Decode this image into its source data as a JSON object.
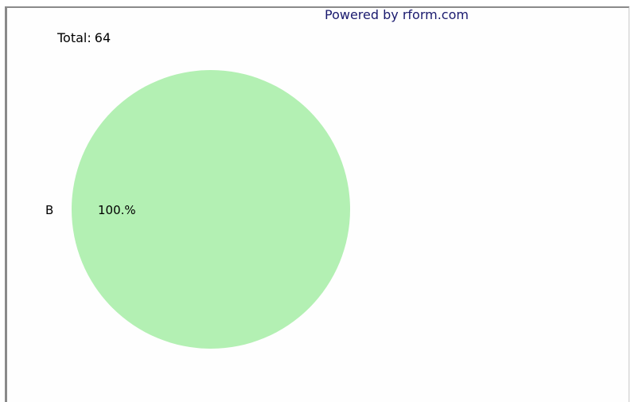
{
  "header": {
    "powered_by": "Powered by rform.com"
  },
  "summary": {
    "total_label": "Total:",
    "total_value": "64"
  },
  "colors": {
    "slice_fill": "#b3f0b3",
    "powered_by_text": "#1a1a6e"
  },
  "chart_data": {
    "type": "pie",
    "categories": [
      "B"
    ],
    "values": [
      64
    ],
    "percent_labels": [
      "100.%"
    ],
    "total": 64
  }
}
